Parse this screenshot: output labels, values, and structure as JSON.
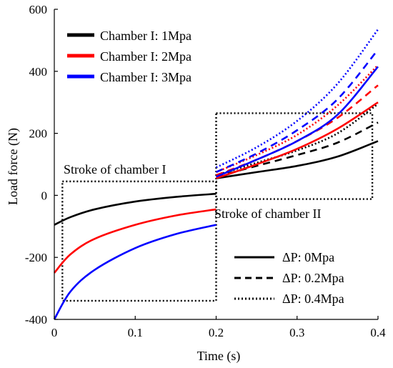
{
  "chart_data": {
    "type": "line",
    "xlabel": "Time (s)",
    "ylabel": "Load force (N)",
    "xlim": [
      0,
      0.4
    ],
    "ylim": [
      -400,
      600
    ],
    "xticks": [
      "0",
      "0.1",
      "0.2",
      "0.3",
      "0.4"
    ],
    "yticks": [
      "600",
      "400",
      "200",
      "0",
      "-200",
      "-400"
    ],
    "grid": false,
    "legend_color": {
      "placement": "top-left",
      "entries": [
        {
          "label": "Chamber I: 1Mpa",
          "color": "#000000"
        },
        {
          "label": "Chamber I: 2Mpa",
          "color": "#ff0000"
        },
        {
          "label": "Chamber I: 3Mpa",
          "color": "#0000ff"
        }
      ]
    },
    "legend_style": {
      "placement": "bottom-right",
      "entries": [
        {
          "label": "ΔP: 0Mpa",
          "dash": "solid"
        },
        {
          "label": "ΔP: 0.2Mpa",
          "dash": "dashed"
        },
        {
          "label": "ΔP: 0.4Mpa",
          "dash": "dotted"
        }
      ]
    },
    "annotations": [
      {
        "text": "Stroke of chamber I"
      },
      {
        "text": "Stroke of chamber II"
      }
    ],
    "stroke_boxes": [
      {
        "x": [
          0.01,
          0.2
        ],
        "y": [
          -340,
          45
        ]
      },
      {
        "x": [
          0.2,
          0.393
        ],
        "y": [
          -12,
          265
        ]
      }
    ],
    "series": [
      {
        "color": "#000000",
        "dash": "solid",
        "x": [
          0,
          0.02,
          0.05,
          0.1,
          0.15,
          0.2
        ],
        "y": [
          -95,
          -70,
          -45,
          -20,
          -5,
          5
        ]
      },
      {
        "color": "#ff0000",
        "dash": "solid",
        "x": [
          0,
          0.02,
          0.05,
          0.1,
          0.15,
          0.2
        ],
        "y": [
          -250,
          -190,
          -140,
          -95,
          -65,
          -45
        ]
      },
      {
        "color": "#0000ff",
        "dash": "solid",
        "x": [
          0,
          0.02,
          0.05,
          0.1,
          0.15,
          0.2
        ],
        "y": [
          -400,
          -310,
          -240,
          -170,
          -125,
          -95
        ]
      },
      {
        "color": "#000000",
        "dash": "solid",
        "x": [
          0.2,
          0.25,
          0.3,
          0.35,
          0.4
        ],
        "y": [
          55,
          75,
          95,
          125,
          175
        ]
      },
      {
        "color": "#000000",
        "dash": "dashed",
        "x": [
          0.2,
          0.25,
          0.3,
          0.35,
          0.4
        ],
        "y": [
          60,
          95,
          130,
          170,
          235
        ]
      },
      {
        "color": "#000000",
        "dash": "dotted",
        "x": [
          0.2,
          0.25,
          0.3,
          0.35,
          0.4
        ],
        "y": [
          65,
          105,
          145,
          200,
          295
        ]
      },
      {
        "color": "#ff0000",
        "dash": "solid",
        "x": [
          0.2,
          0.25,
          0.3,
          0.35,
          0.4
        ],
        "y": [
          55,
          100,
          150,
          215,
          300
        ]
      },
      {
        "color": "#ff0000",
        "dash": "dashed",
        "x": [
          0.2,
          0.25,
          0.3,
          0.35,
          0.4
        ],
        "y": [
          65,
          115,
          175,
          250,
          355
        ]
      },
      {
        "color": "#ff0000",
        "dash": "dotted",
        "x": [
          0.2,
          0.25,
          0.3,
          0.35,
          0.4
        ],
        "y": [
          75,
          130,
          195,
          290,
          420
        ]
      },
      {
        "color": "#0000ff",
        "dash": "solid",
        "x": [
          0.2,
          0.25,
          0.3,
          0.35,
          0.4
        ],
        "y": [
          60,
          115,
          175,
          260,
          415
        ]
      },
      {
        "color": "#0000ff",
        "dash": "dashed",
        "x": [
          0.2,
          0.25,
          0.3,
          0.35,
          0.4
        ],
        "y": [
          75,
          135,
          210,
          310,
          470
        ]
      },
      {
        "color": "#0000ff",
        "dash": "dotted",
        "x": [
          0.2,
          0.25,
          0.3,
          0.35,
          0.4
        ],
        "y": [
          90,
          155,
          240,
          360,
          535
        ]
      }
    ]
  }
}
